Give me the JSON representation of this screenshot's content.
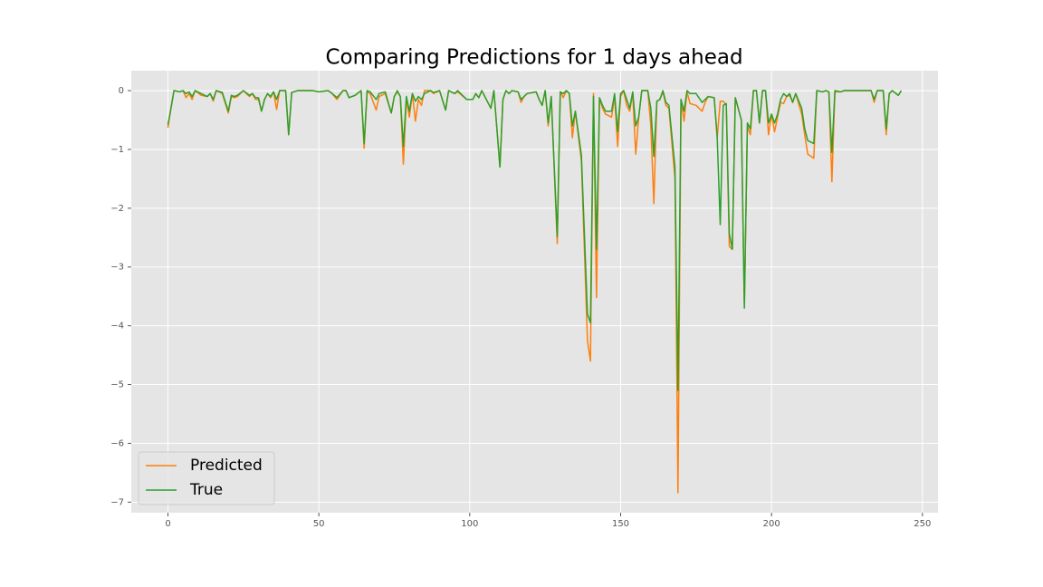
{
  "chart_data": {
    "type": "line",
    "title": "Comparing Predictions for 1 days ahead",
    "x": [
      0,
      1,
      2,
      4,
      5,
      6,
      7,
      8,
      9,
      11,
      13,
      14,
      15,
      16,
      18,
      20,
      21,
      22,
      23,
      25,
      27,
      28,
      29,
      30,
      31,
      32,
      33,
      34,
      35,
      36,
      37,
      39,
      40,
      41,
      43,
      48,
      50,
      53,
      54,
      56,
      58,
      59,
      60,
      62,
      64,
      65,
      66,
      67,
      69,
      70,
      72,
      74,
      75,
      76,
      77,
      78,
      79,
      80,
      81,
      82,
      83,
      84,
      85,
      87,
      88,
      90,
      92,
      93,
      95,
      96,
      99,
      101,
      102,
      103,
      104,
      106,
      107,
      108,
      110,
      111,
      112,
      113,
      114,
      116,
      117,
      118,
      119,
      122,
      123,
      124,
      125,
      126,
      127,
      129,
      130,
      131,
      132,
      133,
      134,
      135,
      137,
      139,
      140,
      141,
      142,
      143,
      144,
      145,
      147,
      148,
      149,
      150,
      151,
      152,
      153,
      154,
      155,
      156,
      157,
      159,
      160,
      161,
      162,
      163,
      164,
      165,
      166,
      168,
      169,
      170,
      171,
      172,
      173,
      175,
      177,
      178,
      179,
      181,
      182,
      183,
      184,
      185,
      186,
      187,
      188,
      190,
      191,
      192,
      193,
      194,
      195,
      196,
      197,
      198,
      199,
      200,
      201,
      202,
      203,
      204,
      205,
      206,
      207,
      208,
      210,
      211,
      212,
      214,
      215,
      217,
      218,
      219,
      220,
      221,
      223,
      224,
      233,
      234,
      235,
      237,
      238,
      239,
      240,
      242,
      243
    ],
    "series": [
      {
        "name": "Predicted",
        "color": "#ff7f0e",
        "values": [
          -0.63,
          -0.3,
          0,
          -0.02,
          0,
          -0.12,
          -0.05,
          -0.15,
          0,
          -0.08,
          -0.1,
          -0.05,
          -0.18,
          0,
          -0.05,
          -0.38,
          -0.1,
          -0.12,
          -0.1,
          0,
          -0.1,
          -0.05,
          -0.15,
          -0.15,
          -0.35,
          -0.15,
          -0.05,
          -0.12,
          -0.02,
          -0.32,
          0,
          0,
          -0.75,
          -0.03,
          0,
          0,
          -0.02,
          0,
          -0.03,
          -0.15,
          0,
          0,
          -0.12,
          -0.08,
          0,
          -0.98,
          -0.02,
          -0.05,
          -0.33,
          -0.1,
          -0.05,
          -0.38,
          -0.1,
          -0.02,
          -0.1,
          -1.25,
          -0.15,
          -0.45,
          -0.05,
          -0.52,
          -0.15,
          -0.25,
          0,
          0,
          -0.05,
          0,
          -0.33,
          0,
          -0.05,
          -0.02,
          -0.15,
          -0.15,
          -0.05,
          -0.12,
          0,
          -0.2,
          -0.3,
          0,
          -1.3,
          -0.15,
          0,
          -0.05,
          0,
          -0.02,
          -0.2,
          -0.1,
          -0.05,
          -0.02,
          -0.15,
          -0.25,
          0,
          -0.6,
          -0.1,
          -2.6,
          -0.02,
          -0.12,
          0,
          -0.05,
          -0.8,
          -0.35,
          -1.2,
          -4.25,
          -4.6,
          -0.05,
          -3.52,
          -0.12,
          -0.3,
          -0.4,
          -0.45,
          -0.1,
          -0.95,
          -0.1,
          0,
          -0.25,
          -0.35,
          -0.05,
          -1.08,
          -0.45,
          0,
          0,
          -0.6,
          -1.92,
          -0.18,
          -0.15,
          -0.02,
          -0.25,
          -0.3,
          -1.5,
          -6.84,
          -0.15,
          -0.52,
          -0.02,
          -0.22,
          -0.25,
          -0.35,
          -0.2,
          -0.1,
          -0.12,
          -0.8,
          -0.18,
          -0.18,
          -0.25,
          -2.65,
          -2.7,
          -0.12,
          -0.5,
          -3.65,
          -0.6,
          -0.75,
          0,
          0,
          -0.55,
          0,
          0,
          -0.75,
          -0.4,
          -0.7,
          -0.45,
          -0.2,
          -0.22,
          -0.1,
          -0.08,
          -0.2,
          -0.05,
          -0.4,
          -0.75,
          -1.08,
          -1.15,
          0,
          -0.02,
          0,
          -0.02,
          -1.55,
          -0.02,
          -0.02,
          0,
          0,
          -0.2,
          0,
          0,
          -0.75,
          -0.05,
          0,
          -0.08,
          0
        ]
      },
      {
        "name": "True",
        "color": "#2ca02c",
        "values": [
          -0.58,
          -0.3,
          0,
          -0.02,
          0,
          -0.05,
          -0.02,
          -0.1,
          0,
          -0.05,
          -0.1,
          -0.05,
          -0.15,
          0,
          -0.03,
          -0.35,
          -0.08,
          -0.1,
          -0.08,
          0,
          -0.08,
          -0.05,
          -0.12,
          -0.12,
          -0.35,
          -0.15,
          -0.05,
          -0.1,
          -0.02,
          -0.15,
          0,
          0,
          -0.75,
          -0.03,
          0,
          0,
          -0.02,
          0,
          -0.03,
          -0.12,
          0,
          0,
          -0.12,
          -0.08,
          0,
          -0.9,
          0,
          -0.02,
          -0.15,
          -0.05,
          -0.02,
          -0.38,
          -0.1,
          0,
          -0.1,
          -0.95,
          -0.1,
          -0.35,
          -0.05,
          -0.18,
          -0.1,
          -0.15,
          -0.05,
          0,
          -0.03,
          0,
          -0.33,
          0,
          -0.05,
          0,
          -0.15,
          -0.15,
          -0.05,
          -0.12,
          0,
          -0.2,
          -0.3,
          0,
          -1.3,
          -0.15,
          0,
          -0.05,
          0,
          -0.02,
          -0.15,
          -0.1,
          -0.05,
          -0.02,
          -0.15,
          -0.25,
          0,
          -0.55,
          -0.1,
          -2.48,
          -0.02,
          -0.05,
          0,
          -0.05,
          -0.6,
          -0.35,
          -1.1,
          -3.8,
          -3.95,
          -0.1,
          -2.7,
          -0.12,
          -0.25,
          -0.35,
          -0.35,
          -0.05,
          -0.7,
          -0.05,
          0,
          -0.15,
          -0.3,
          -0.02,
          -0.6,
          -0.45,
          0,
          0,
          -0.3,
          -1.12,
          -0.18,
          -0.15,
          0,
          -0.2,
          -0.25,
          -1.3,
          -5.1,
          -0.15,
          -0.35,
          0,
          -0.05,
          -0.05,
          -0.2,
          -0.15,
          -0.1,
          -0.12,
          -0.8,
          -2.28,
          -0.25,
          -0.22,
          -2.43,
          -2.7,
          -0.12,
          -0.5,
          -3.7,
          -0.55,
          -0.65,
          0,
          0,
          -0.55,
          0,
          0,
          -0.55,
          -0.4,
          -0.55,
          -0.4,
          -0.15,
          -0.05,
          -0.1,
          -0.05,
          -0.2,
          -0.05,
          -0.3,
          -0.65,
          -0.85,
          -0.9,
          0,
          -0.02,
          0,
          -0.02,
          -1.05,
          0,
          -0.02,
          0,
          0,
          -0.15,
          0,
          0,
          -0.65,
          -0.05,
          0,
          -0.08,
          0
        ]
      }
    ],
    "xlim": [
      -12.15,
      255.15
    ],
    "ylim": [
      -7.18,
      0.34
    ],
    "xticks": [
      0,
      50,
      100,
      150,
      200,
      250
    ],
    "yticks": [
      0,
      {
        "value": -1,
        "label": "−1"
      },
      {
        "value": -2,
        "label": "−2"
      },
      {
        "value": -3,
        "label": "−3"
      },
      {
        "value": -4,
        "label": "−4"
      },
      {
        "value": -5,
        "label": "−5"
      },
      {
        "value": -6,
        "label": "−6"
      },
      {
        "value": -7,
        "label": "−7"
      }
    ],
    "grid": true,
    "legend": "lower left"
  }
}
